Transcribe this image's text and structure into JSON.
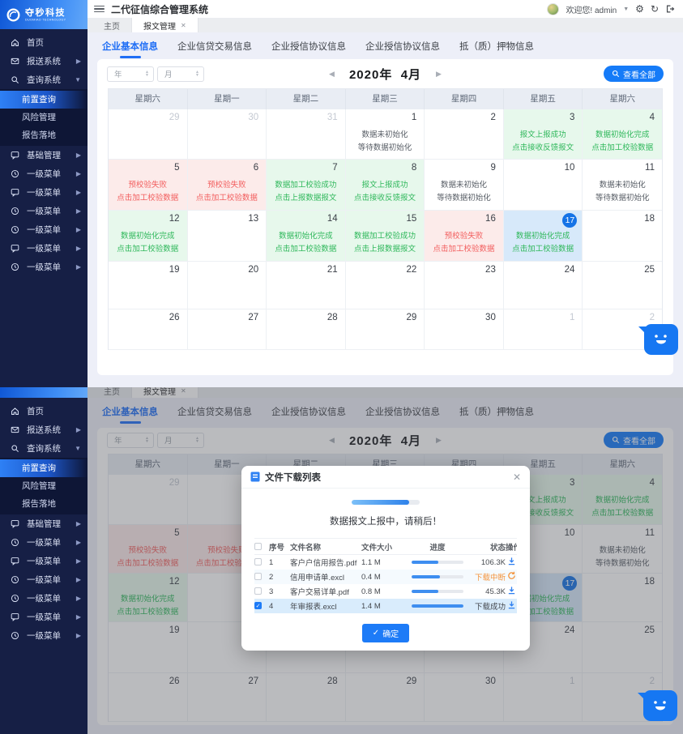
{
  "brand": {
    "name": "夺秒科技",
    "subtitle": "DUOMIAO TECHNOLOGY"
  },
  "header": {
    "title": "二代征信综合管理系统",
    "welcome": "欢迎您! admin"
  },
  "tabs": {
    "home": "主页",
    "active": "报文管理",
    "close": "✕"
  },
  "subtabs": [
    "企业基本信息",
    "企业信贷交易信息",
    "企业授信协议信息",
    "企业授信协议信息",
    "抵（质）押物信息"
  ],
  "sidebar": {
    "top": [
      {
        "label": "首页",
        "icon": "home"
      },
      {
        "label": "报送系统",
        "icon": "send",
        "arrow": "right"
      },
      {
        "label": "查询系统",
        "icon": "search",
        "arrow": "down"
      }
    ],
    "sub": [
      {
        "label": "前置查询",
        "active": true
      },
      {
        "label": "风险管理"
      },
      {
        "label": "报告落地"
      }
    ],
    "rest": [
      {
        "label": "基础管理",
        "icon": "chat",
        "arrow": "right"
      },
      {
        "label": "一级菜单",
        "icon": "clock",
        "arrow": "right"
      },
      {
        "label": "一级菜单",
        "icon": "chat",
        "arrow": "right"
      },
      {
        "label": "一级菜单",
        "icon": "clock",
        "arrow": "right"
      },
      {
        "label": "一级菜单",
        "icon": "clock",
        "arrow": "right"
      },
      {
        "label": "一级菜单",
        "icon": "chat",
        "arrow": "right"
      },
      {
        "label": "一级菜单",
        "icon": "clock",
        "arrow": "right"
      }
    ]
  },
  "calendar": {
    "select_year": "年",
    "select_month": "月",
    "title_year": "2020年",
    "title_month": "4月",
    "view_all": "查看全部",
    "weekdays": [
      "星期六",
      "星期一",
      "星期二",
      "星期三",
      "星期四",
      "星期五",
      "星期六"
    ],
    "cells": [
      {
        "d": "29",
        "other": true
      },
      {
        "d": "30",
        "other": true
      },
      {
        "d": "31",
        "other": true
      },
      {
        "d": "1",
        "style": "plain",
        "lines": [
          "数据未初始化",
          "等待数据初始化"
        ]
      },
      {
        "d": "2"
      },
      {
        "d": "3",
        "style": "green",
        "lines": [
          "报文上报成功",
          "点击接收反馈报文"
        ]
      },
      {
        "d": "4",
        "style": "green",
        "lines": [
          "数据初始化完成",
          "点击加工校验数据"
        ]
      },
      {
        "d": "5",
        "style": "red",
        "lines": [
          "预校验失败",
          "点击加工校验数据"
        ]
      },
      {
        "d": "6",
        "style": "red",
        "lines": [
          "预校验失败",
          "点击加工校验数据"
        ]
      },
      {
        "d": "7",
        "style": "green",
        "lines": [
          "数据加工校验成功",
          "点击上报数据报文"
        ]
      },
      {
        "d": "8",
        "style": "green",
        "lines": [
          "报文上报成功",
          "点击接收反馈报文"
        ]
      },
      {
        "d": "9",
        "style": "plain",
        "lines": [
          "数据未初始化",
          "等待数据初始化"
        ]
      },
      {
        "d": "10"
      },
      {
        "d": "11",
        "style": "plain",
        "lines": [
          "数据未初始化",
          "等待数据初始化"
        ]
      },
      {
        "d": "12",
        "style": "green",
        "lines": [
          "数据初始化完成",
          "点击加工校验数据"
        ]
      },
      {
        "d": "13"
      },
      {
        "d": "14",
        "style": "green",
        "lines": [
          "数据初始化完成",
          "点击加工校验数据"
        ]
      },
      {
        "d": "15",
        "style": "green",
        "lines": [
          "数据加工校验成功",
          "点击上报数据报文"
        ]
      },
      {
        "d": "16",
        "style": "red",
        "lines": [
          "预校验失败",
          "点击加工校验数据"
        ]
      },
      {
        "d": "17",
        "style": "blue",
        "today": true,
        "lines": [
          "数据初始化完成",
          "点击加工校验数据"
        ]
      },
      {
        "d": "18"
      },
      {
        "d": "19"
      },
      {
        "d": "20"
      },
      {
        "d": "21"
      },
      {
        "d": "22"
      },
      {
        "d": "23"
      },
      {
        "d": "24"
      },
      {
        "d": "25"
      },
      {
        "d": "26"
      },
      {
        "d": "27"
      },
      {
        "d": "28"
      },
      {
        "d": "29"
      },
      {
        "d": "30"
      },
      {
        "d": "1",
        "other": true
      },
      {
        "d": "2",
        "other": true
      }
    ]
  },
  "modal": {
    "title": "文件下载列表",
    "message": "数据报文上报中，请稍后！",
    "progress_percent": 85,
    "columns": [
      "序号",
      "文件名称",
      "文件大小",
      "进度",
      "状态",
      "操作"
    ],
    "rows": [
      {
        "no": "1",
        "name": "客户户信用报告.pdf",
        "size": "1.1 M",
        "progress": 52,
        "status": "106.3K",
        "status_color": "normal",
        "action": "download",
        "checked": false
      },
      {
        "no": "2",
        "name": "信用申请单.excl",
        "size": "0.4 M",
        "progress": 55,
        "status": "下载中断",
        "status_color": "orange",
        "action": "refresh",
        "checked": false
      },
      {
        "no": "3",
        "name": "客户交易详单.pdf",
        "size": "0.8 M",
        "progress": 52,
        "status": "45.3K",
        "status_color": "normal",
        "action": "download",
        "checked": false
      },
      {
        "no": "4",
        "name": "年审报表.excl",
        "size": "1.4 M",
        "progress": 100,
        "status": "下载成功",
        "status_color": "normal",
        "action": "download",
        "checked": true,
        "selected": true
      }
    ],
    "ok": "确定"
  }
}
